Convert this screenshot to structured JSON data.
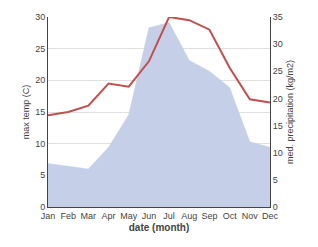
{
  "chart_data": {
    "type": "line",
    "xlabel": "date (month)",
    "ylabel": "max temp (C)",
    "y2label": "med. precipitation (kg/m2)",
    "categories": [
      "Jan",
      "Feb",
      "Mar",
      "Apr",
      "May",
      "Jun",
      "Jul",
      "Aug",
      "Sep",
      "Oct",
      "Nov",
      "Dec"
    ],
    "series": [
      {
        "type": "area",
        "axis": "y2",
        "color": "#c5cfe8",
        "values": [
          8.0,
          7.5,
          7.0,
          11.0,
          17.0,
          33.0,
          34.0,
          27.0,
          25.0,
          22.0,
          12.0,
          11.0
        ]
      },
      {
        "type": "line",
        "color": "#c0504d",
        "values": [
          14.5,
          15.0,
          16.0,
          19.5,
          19.0,
          23.0,
          30.0,
          29.5,
          28.0,
          22.0,
          17.0,
          16.5
        ]
      }
    ],
    "ylim": [
      0,
      30
    ],
    "yticks": [
      0,
      5,
      10,
      15,
      20,
      25,
      30
    ],
    "y2lim": [
      0,
      35
    ],
    "y2ticks": [
      0,
      5,
      10,
      15,
      20,
      25,
      30,
      35
    ],
    "grid": true
  }
}
